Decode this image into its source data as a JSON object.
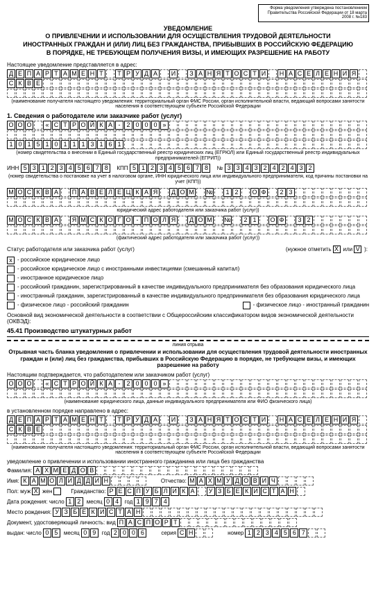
{
  "top_right": "Форма уведомления утверждена постановлением Правительства Российской Федерации от 18 марта 2008 г. №183",
  "title_lines": [
    "УВЕДОМЛЕНИЕ",
    "О ПРИВЛЕЧЕНИИ И ИСПОЛЬЗОВАНИИ ДЛЯ ОСУЩЕСТВЛЕНИЯ ТРУДОВОЙ ДЕЯТЕЛЬНОСТИ",
    "ИНОСТРАННЫХ ГРАЖДАН И (ИЛИ) ЛИЦ БЕЗ ГРАЖДАНСТВА, ПРИБЫВШИХ В РОССИЙСКУЮ ФЕДЕРАЦИЮ",
    "В ПОРЯДКЕ, НЕ ТРЕБУЮЩЕМ ПОЛУЧЕНИЯ ВИЗЫ, И ИМЕЮЩИХ РАЗРЕШЕНИЕ НА РАБОТУ"
  ],
  "addr_label": "Настоящее уведомление представляется в адрес:",
  "addr_row1": "ДЕПАРТАМЕНТ ТРУДА И ЗАНЯТОСТИ НАСЕЛЕНИЯ ПО МО",
  "addr_row2": "СКВЕ",
  "addr_note": "(наименование получателя настоящего уведомления: территориальный орган ФМС России, орган исполнительной власти, ведающий вопросами занятости населения в соответствующем субъекте Российской Федерации",
  "section1": "1. Сведения о работодателе или заказчике работ (услуг)",
  "org_name": "ООО «СТРОЙКА-2000»",
  "reg_num_label": "(номер свидетельства о внесении в Единый государственный реестр юридических лиц (ЕГРЮЛ) или Единый государственный реестр индивидуальных предпринимателей (ЕГРИП))",
  "reg_num": "1015101113161",
  "inn_label": "ИНН",
  "inn": "5312345678",
  "kpp_label": "КПП",
  "kpp": "512345678",
  "num_label": "№",
  "cert_num": "3343242432",
  "inn_note": "(номер свидетельства о постановке на учет в налоговом органе, ИНН юридического лица или индивидуального предпринимателя, код причины постановки на учет (КПП))",
  "jur_addr1": "МОСКВА ПАВЕЛЕЦКАЯ ДОМ № 12 ОФ 23",
  "jur_addr_note": "юридический адрес работодателя или заказчика работ (услуг))",
  "fact_addr1": "МОСКВА ЯМСКОГО-ПОЛЯ ДОМ № 21 ОФ 32",
  "fact_addr_note": "(фактический адрес работодателя или заказчика работ (услуг))",
  "status_label": "Статус работодателя или заказчика работ (услуг)",
  "status_hint": "(нужное отметить",
  "x_mark": "X",
  "or_word": "или",
  "v_mark": "V",
  "closing_paren": "):",
  "status_opts": [
    "- российское юридическое лицо",
    "- российское юридическое лицо с иностранными инвестициями (смешанный капитал)",
    "- иностранное юридическое лицо",
    "- российский гражданин, зарегистрированный в качестве индивидуального предпринимателя без образования юридического лица",
    "- иностранный гражданин, зарегистрированный в качестве индивидуального предпринимателя без образования юридического лица",
    "- физическое лицо - российский гражданин",
    "- физическое лицо - иностранный гражданин"
  ],
  "okved_label": "Основной вид экономической деятельности в соответствии с Общероссийским классификатором видов экономической деятельности (ОКВЭД):",
  "okved_val": "45.41 Производство штукатурных работ",
  "tear_label": "линия отрыва",
  "sub_title": "Отрывная часть бланка уведомления о привлечении и использовании для осуществления трудовой деятельности иностранных граждан и (или) лиц без гражданства, прибывших в Российскую Федерацию в порядке, не требующем визы, и имеющих разрешение на работу",
  "confirm_label": "Настоящим подтверждается, что работодателем или заказчиком работ (услуг)",
  "org_name2": "ООО «СТРОЙКА-2000»",
  "org2_note": "(наименование юридического лица, данные индивидуального предпринимателя или ФИО физического лица)",
  "sent_label": "в установленном порядке направлено в адрес:",
  "addr2_row1": "ДЕПАРТАМЕНТ ТРУДА И ЗАНЯТОСТИ НАСЕЛЕНИЯ ПО МО",
  "addr2_row2": "СКВЕ",
  "decl_label": "уведомление о привлечении и использовании иностранного гражданина или лица без гражданства",
  "surname_label": "Фамилия:",
  "surname": "АХМЕДОВ",
  "name_label": "Имя:",
  "name": "КАМОЛИДДИН",
  "patr_label": "Отчество:",
  "patr": "МАХМУДОВИЧ",
  "sex_label": "Пол: муж",
  "sex_f": "жен",
  "sex_mark": "X",
  "citiz_label": "Гражданство:",
  "citiz": "РЕСПУБЛИКА УЗБЕКИСТАН",
  "dob_label": "Дата рождения:  число",
  "dob_d": "12",
  "dob_m_label": "месяц",
  "dob_m": "04",
  "dob_y_label": "год",
  "dob_y": "1974",
  "pob_label": "Место рождения:",
  "pob": "УЗБЕКИСТАН",
  "doc_label": "Документ, удостоверяющий личность: вид",
  "doc_type": "ПАСПОРТ",
  "issue_label": "выдан:  число",
  "issue_d": "05",
  "issue_m": "09",
  "issue_y": "2006",
  "series_label": "серия",
  "series": "CH",
  "docnum_label": "номер",
  "docnum": "1234567"
}
